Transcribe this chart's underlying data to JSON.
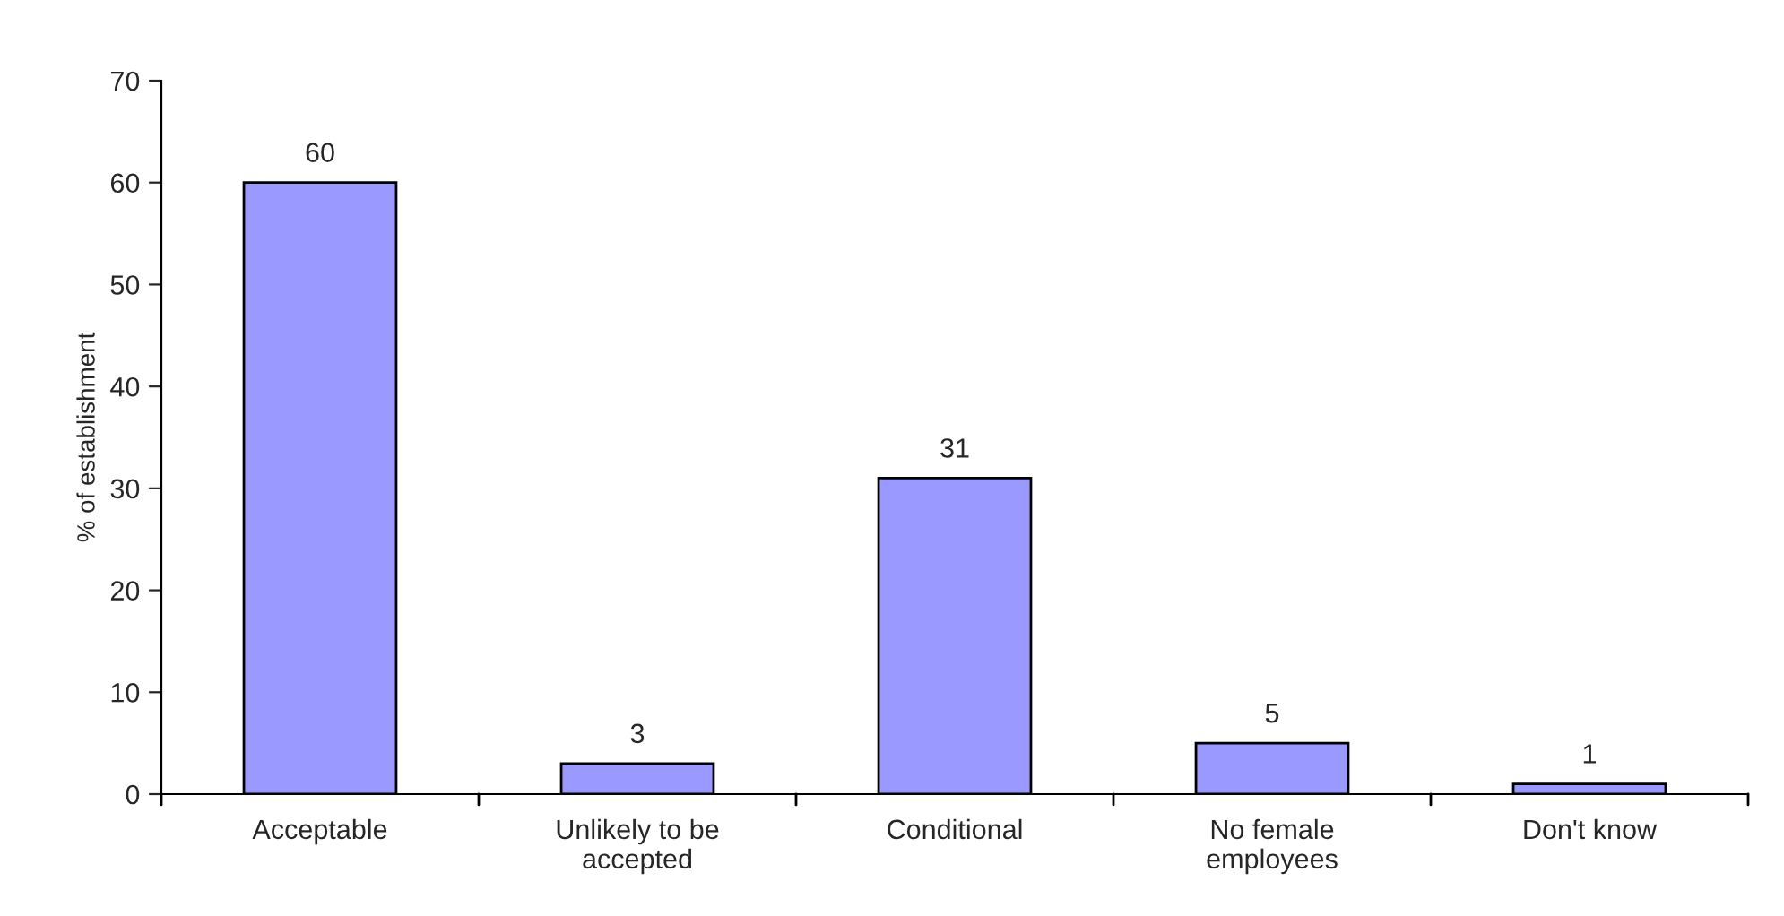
{
  "chart_data": {
    "type": "bar",
    "ylabel": "% of establishment",
    "categories": [
      "Acceptable",
      "Unlikely to be\naccepted",
      "Conditional",
      "No female\nemployees",
      "Don't know"
    ],
    "values": [
      60,
      3,
      31,
      5,
      1
    ],
    "color": "#9999ff",
    "ylim": [
      0,
      70
    ],
    "yticks": [
      0,
      10,
      20,
      30,
      40,
      50,
      60,
      70
    ],
    "grid": false,
    "data_labels": true
  }
}
